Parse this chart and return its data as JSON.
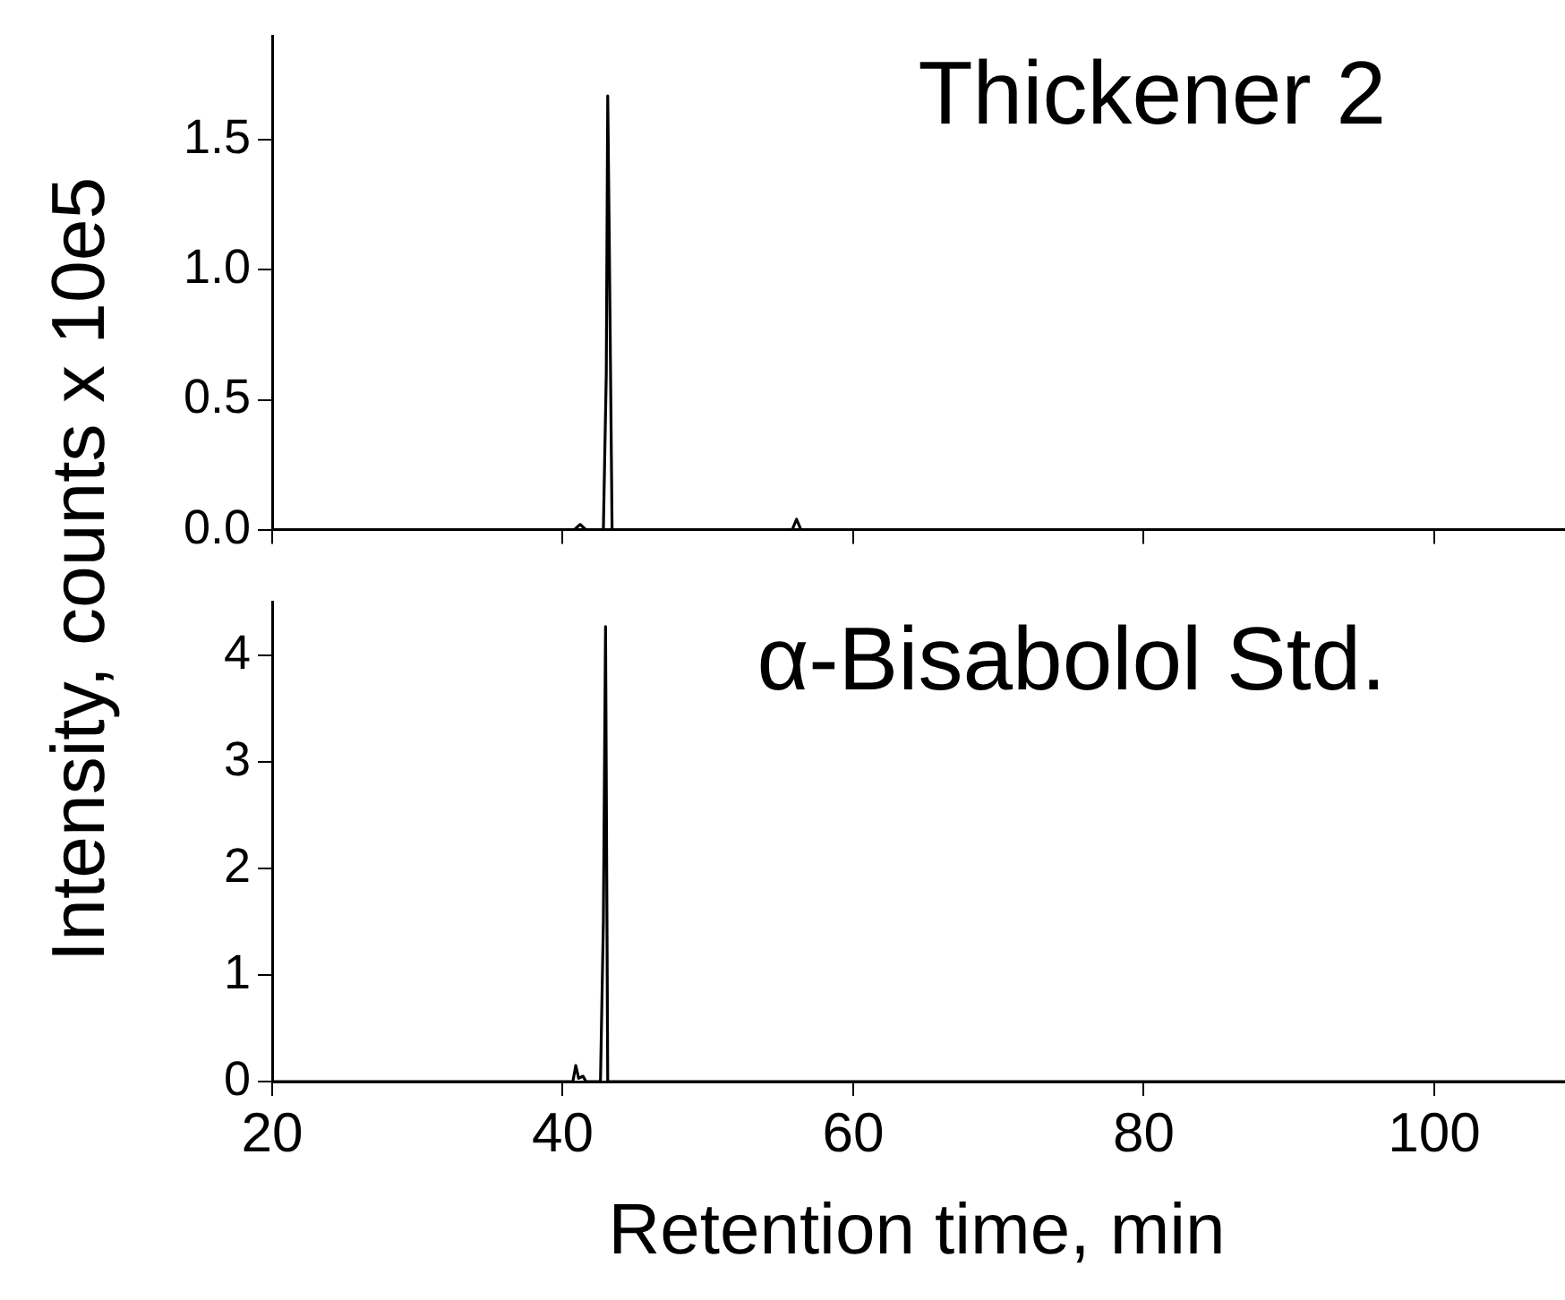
{
  "chart_data": [
    {
      "type": "line",
      "ylabel": "Intensity, counts x 10e5",
      "annotations": [
        "Thickener 2"
      ],
      "tick_labels": "y",
      "grid": false,
      "legend": false,
      "marker": "none",
      "line_style": "solid",
      "xlim": [
        20,
        109
      ],
      "xticks": [
        20,
        40,
        60,
        80,
        100
      ],
      "ylim": [
        0,
        1.9
      ],
      "yticks": [
        {
          "value": 0,
          "label": "0.0"
        },
        {
          "value": 0.5,
          "label": "0.5"
        },
        {
          "value": 1,
          "label": "1.0"
        },
        {
          "value": 1.5,
          "label": "1.5"
        }
      ],
      "series": [
        {
          "color": "#000000",
          "x": [
            20,
            40.8,
            41.2,
            41.6,
            42.8,
            43.0,
            43.1,
            43.2,
            43.4,
            55.8,
            56.1,
            56.4,
            109
          ],
          "values": [
            0,
            0,
            0.02,
            0,
            0,
            0.6,
            1.67,
            1.15,
            0,
            0,
            0.04,
            0,
            0
          ]
        }
      ]
    },
    {
      "type": "line",
      "xlabel": "Retention time, min",
      "annotations": [
        "α-Bisabolol Std."
      ],
      "grid": false,
      "legend": false,
      "marker": "none",
      "line_style": "solid",
      "xlim": [
        20,
        109
      ],
      "xticks": [
        20,
        40,
        60,
        80,
        100
      ],
      "ylim": [
        0,
        4.5
      ],
      "yticks": [
        0,
        1,
        2,
        3,
        4
      ],
      "series": [
        {
          "color": "#000000",
          "x": [
            20,
            40.7,
            40.9,
            41.1,
            41.4,
            41.6,
            42.6,
            42.8,
            42.95,
            43.1,
            109
          ],
          "values": [
            0,
            0,
            0.15,
            0.03,
            0.05,
            0,
            0,
            1.5,
            4.27,
            0,
            0
          ]
        }
      ]
    }
  ]
}
